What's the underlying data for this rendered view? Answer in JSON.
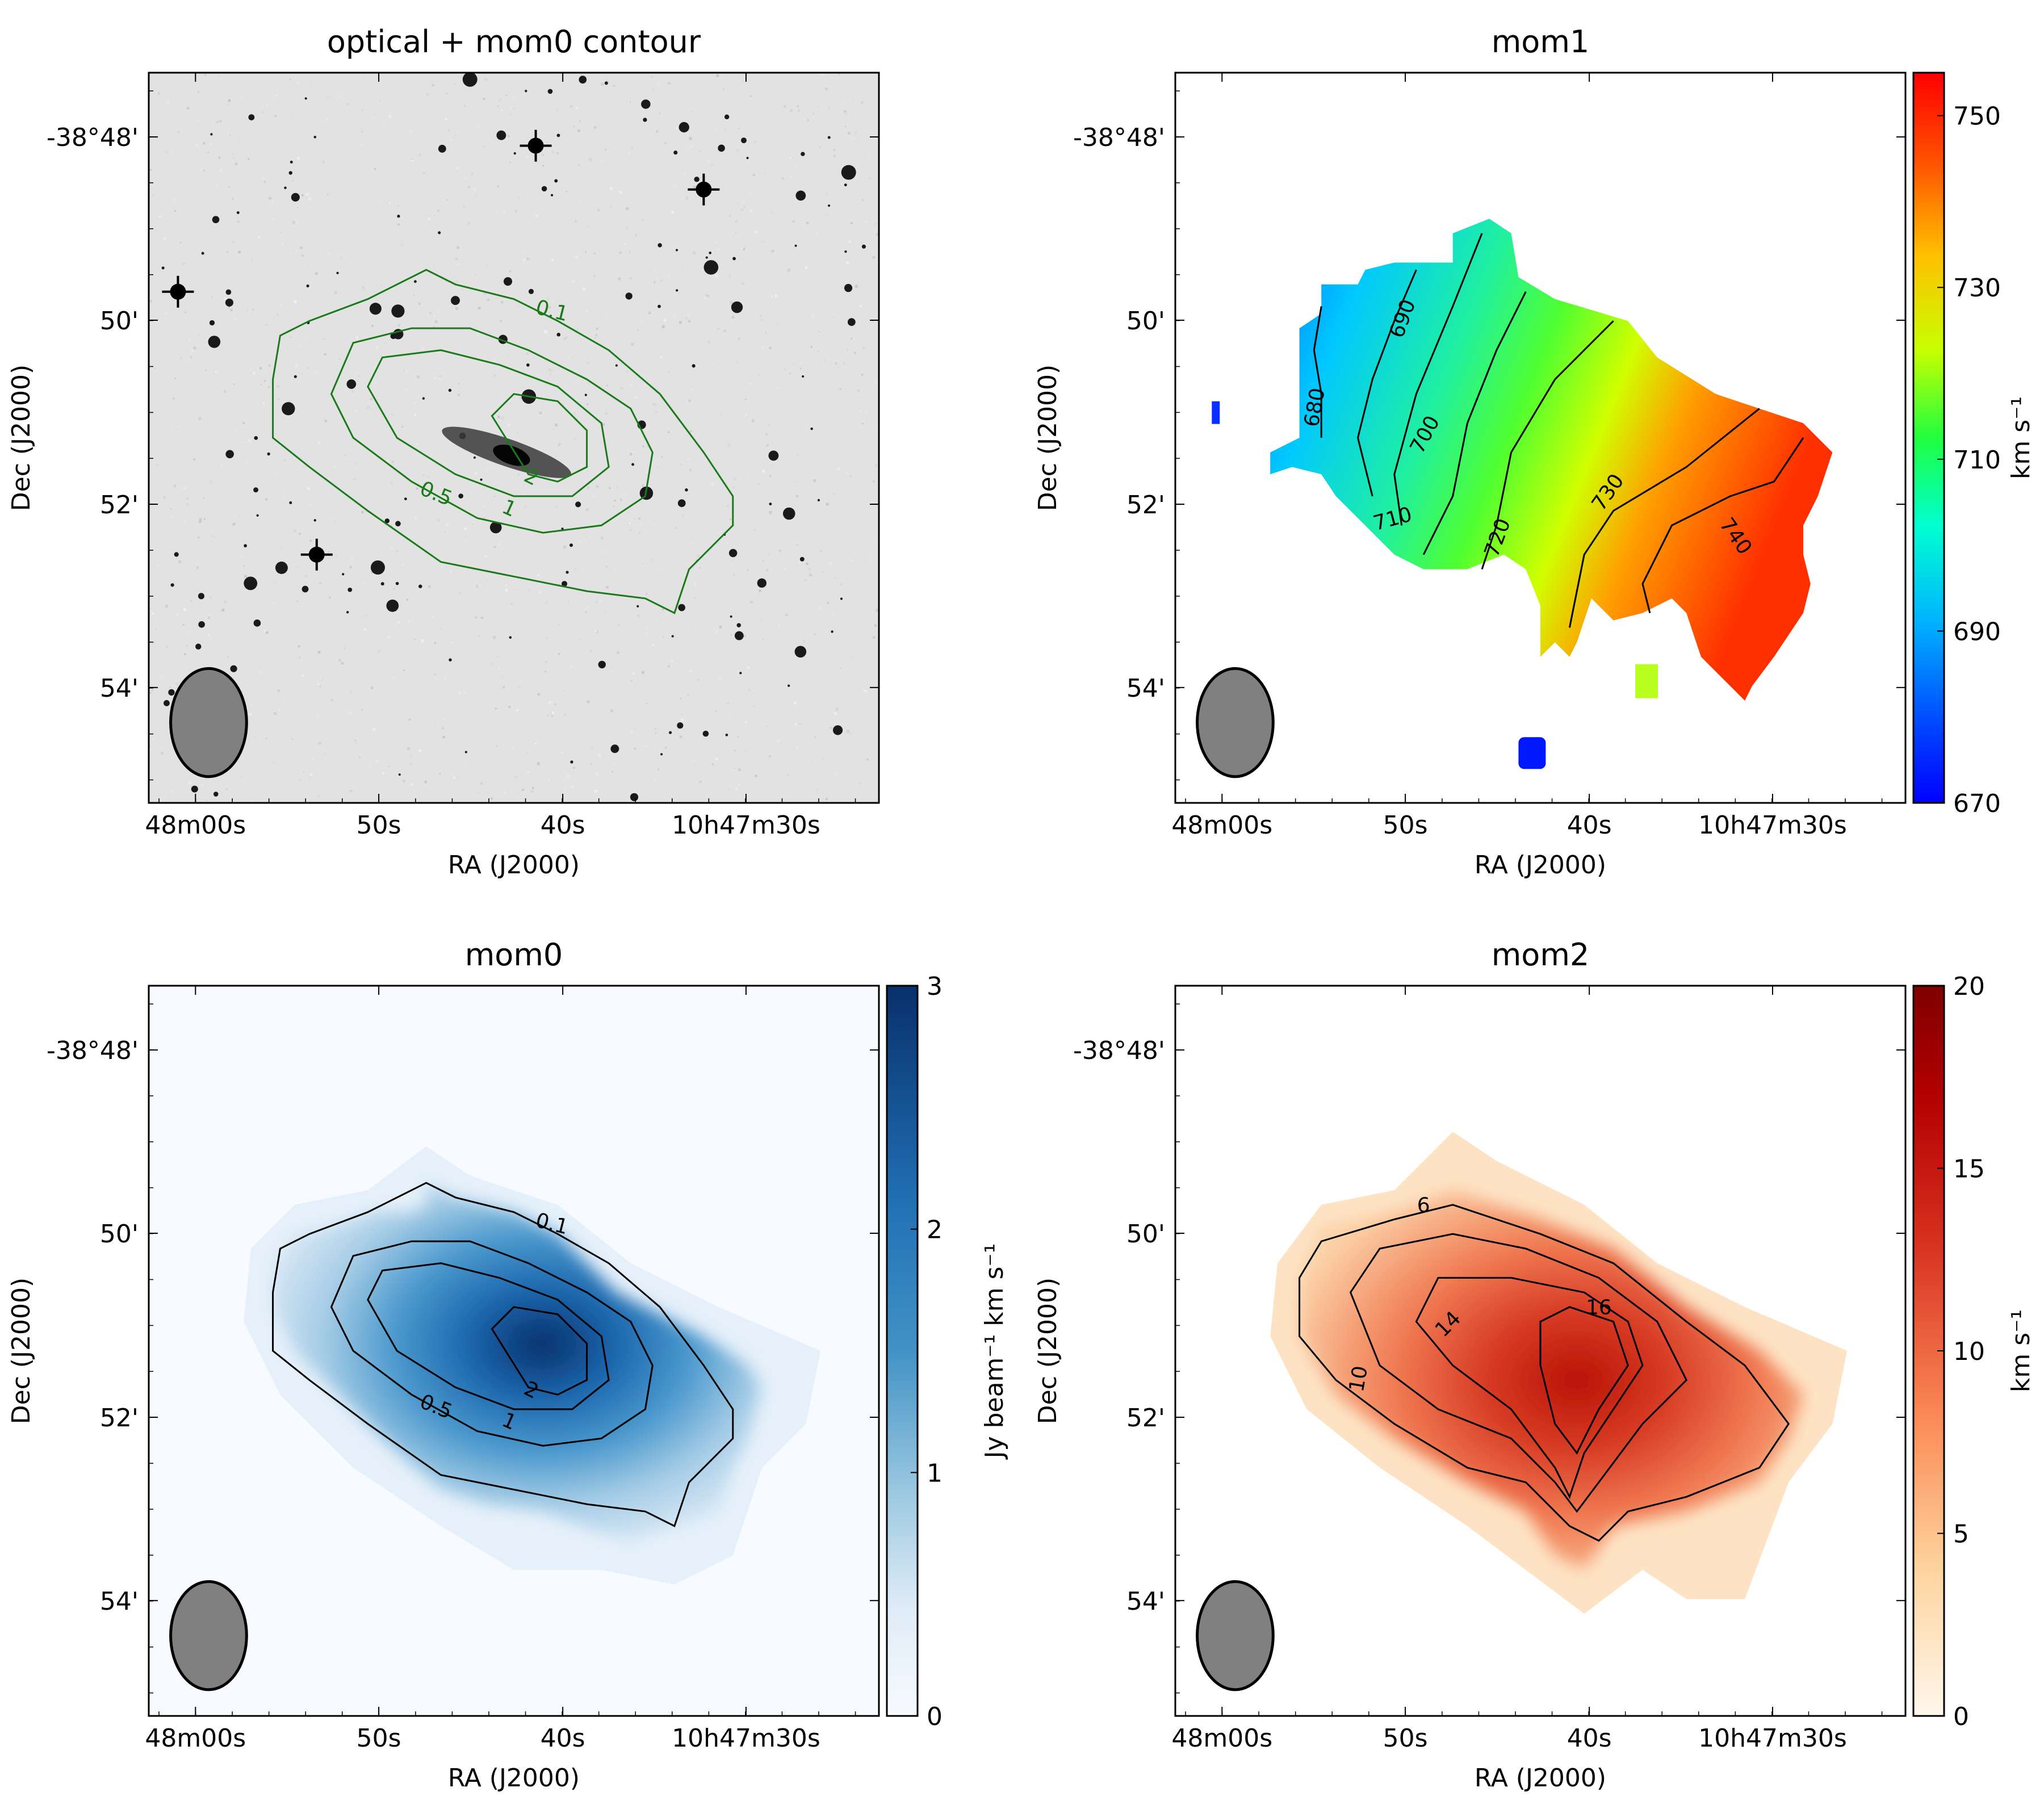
{
  "chart_data": [
    {
      "type": "image",
      "title": "optical + mom0 contour",
      "xlabel": "RA (J2000)",
      "ylabel": "Dec (J2000)",
      "x_ticks": [
        "48m00s",
        "50s",
        "40s",
        "10h47m30s"
      ],
      "y_ticks": [
        "-38°48'",
        "50'",
        "52'",
        "54'"
      ],
      "contour_levels": [
        "0.1",
        "0.5",
        "1",
        "2"
      ],
      "contour_color": "#1a7a1a",
      "background": "optical grayscale",
      "beam": "ellipse bottom-left"
    },
    {
      "type": "heatmap",
      "title": "mom1",
      "xlabel": "RA (J2000)",
      "ylabel": "Dec (J2000)",
      "x_ticks": [
        "48m00s",
        "50s",
        "40s",
        "10h47m30s"
      ],
      "y_ticks": [
        "-38°48'",
        "50'",
        "52'",
        "54'"
      ],
      "colorbar_label": "km s⁻¹",
      "colorbar_ticks": [
        "670",
        "690",
        "710",
        "730",
        "750"
      ],
      "colorbar_range": [
        670,
        755
      ],
      "colormap": "jet",
      "contour_levels": [
        "680",
        "690",
        "700",
        "710",
        "720",
        "730",
        "740"
      ]
    },
    {
      "type": "heatmap",
      "title": "mom0",
      "xlabel": "RA (J2000)",
      "ylabel": "Dec (J2000)",
      "x_ticks": [
        "48m00s",
        "50s",
        "40s",
        "10h47m30s"
      ],
      "y_ticks": [
        "-38°48'",
        "50'",
        "52'",
        "54'"
      ],
      "colorbar_label": "Jy beam⁻¹ km s⁻¹",
      "colorbar_ticks": [
        "0",
        "1",
        "2",
        "3"
      ],
      "colorbar_range": [
        0,
        3
      ],
      "colormap": "Blues",
      "contour_levels": [
        "0.1",
        "0.5",
        "1",
        "2"
      ]
    },
    {
      "type": "heatmap",
      "title": "mom2",
      "xlabel": "RA (J2000)",
      "ylabel": "Dec (J2000)",
      "x_ticks": [
        "48m00s",
        "50s",
        "40s",
        "10h47m30s"
      ],
      "y_ticks": [
        "-38°48'",
        "50'",
        "52'",
        "54'"
      ],
      "colorbar_label": "km s⁻¹",
      "colorbar_ticks": [
        "0",
        "5",
        "10",
        "15",
        "20"
      ],
      "colorbar_range": [
        0,
        20
      ],
      "colormap": "OrRd",
      "contour_levels": [
        "6",
        "10",
        "14",
        "16"
      ]
    }
  ]
}
